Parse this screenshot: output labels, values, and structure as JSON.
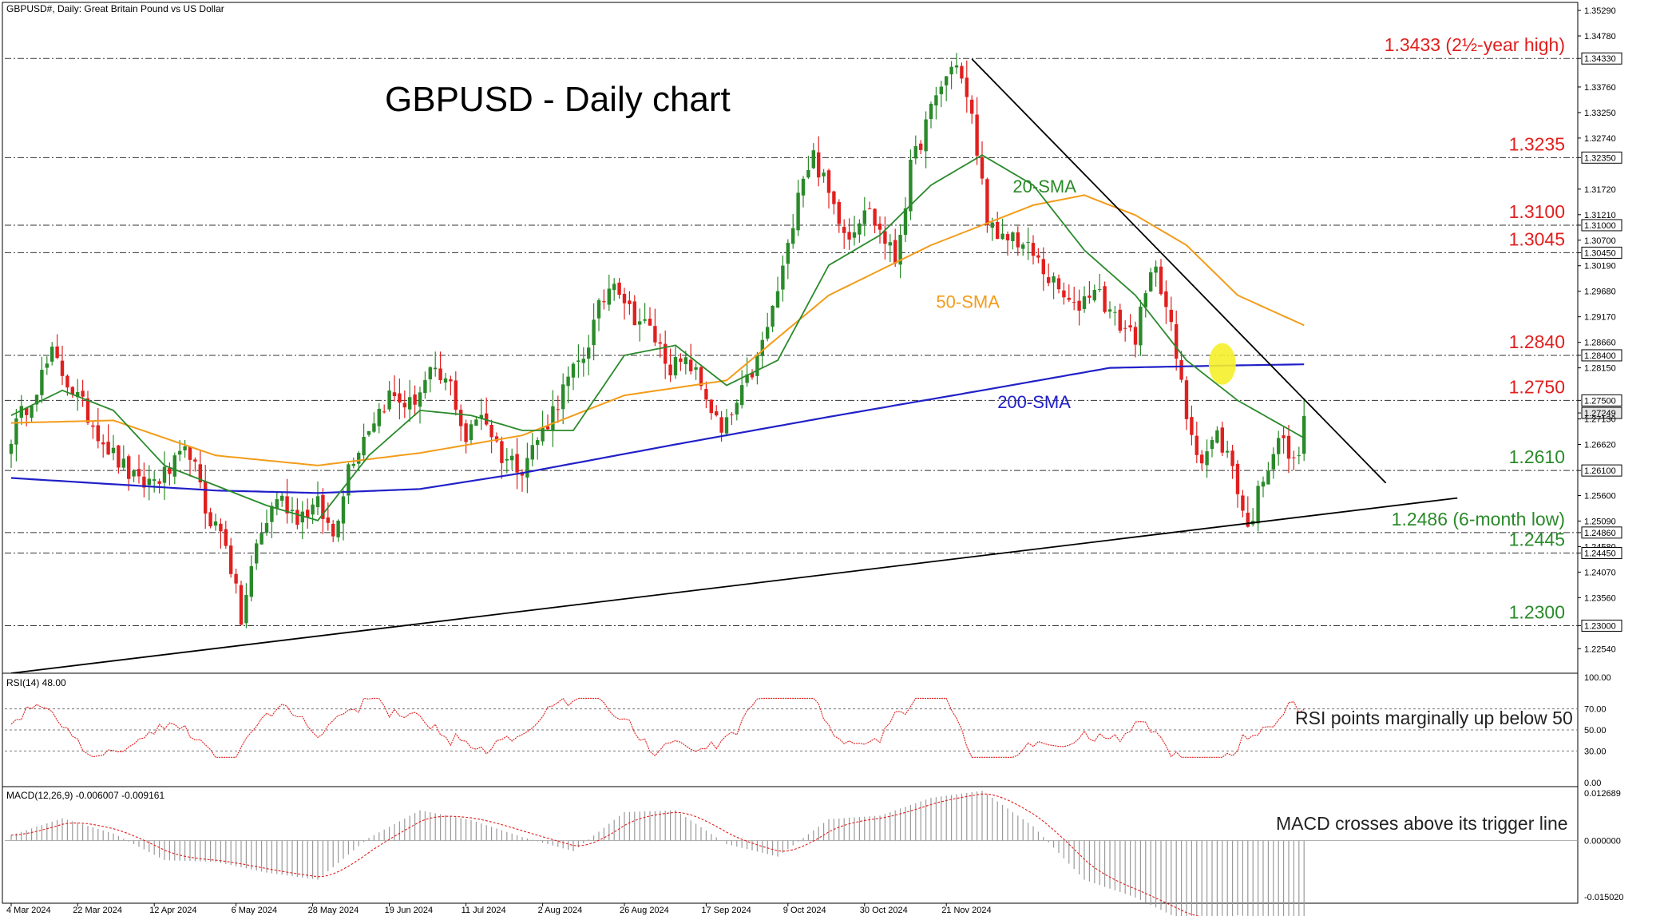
{
  "header": {
    "symbol_info": "GBPUSD#, Daily:  Great Britain Pound vs US Dollar"
  },
  "chart_data": {
    "type": "candlestick",
    "title": "GBPUSD - Daily chart",
    "price_ticks": [
      "1.35290",
      "1.34780",
      "1.34330",
      "1.33760",
      "1.33250",
      "1.32740",
      "1.32350",
      "1.31720",
      "1.31210",
      "1.31000",
      "1.30700",
      "1.30450",
      "1.30190",
      "1.29680",
      "1.29170",
      "1.28660",
      "1.28400",
      "1.28150",
      "1.27500",
      "1.27249",
      "1.27130",
      "1.26620",
      "1.26100",
      "1.25600",
      "1.25090",
      "1.24860",
      "1.24580",
      "1.24450",
      "1.24070",
      "1.23560",
      "1.23000",
      "1.22540"
    ],
    "price_ylim": [
      1.2205,
      1.3545
    ],
    "current_price": 1.27249,
    "level_lines": [
      {
        "value": 1.3433,
        "label": "1.3433 (2½-year high)",
        "box": "1.34330",
        "color": "#e0201f"
      },
      {
        "value": 1.3235,
        "label": "1.3235",
        "box": "1.32350",
        "color": "#e0201f"
      },
      {
        "value": 1.31,
        "label": "1.3100",
        "box": "1.31000",
        "color": "#e0201f"
      },
      {
        "value": 1.3045,
        "label": "1.3045",
        "box": "1.30450",
        "color": "#e0201f"
      },
      {
        "value": 1.284,
        "label": "1.2840",
        "box": "1.28400",
        "color": "#e0201f"
      },
      {
        "value": 1.275,
        "label": "1.2750",
        "box": "1.27500",
        "color": "#e0201f"
      },
      {
        "value": 1.261,
        "label": "1.2610",
        "box": "1.26100",
        "color": "#2a8a2a"
      },
      {
        "value": 1.2486,
        "label": "1.2486 (6-month low)",
        "box": "1.24860",
        "color": "#2a8a2a"
      },
      {
        "value": 1.2445,
        "label": "1.2445",
        "box": "1.24450",
        "color": "#2a8a2a"
      },
      {
        "value": 1.23,
        "label": "1.2300",
        "box": "1.23000",
        "color": "#2a8a2a"
      }
    ],
    "x_labels": [
      "4 Mar 2024",
      "22 Mar 2024",
      "12 Apr 2024",
      "6 May 2024",
      "28 May 2024",
      "19 Jun 2024",
      "11 Jul 2024",
      "2 Aug 2024",
      "26 Aug 2024",
      "17 Sep 2024",
      "9 Oct 2024",
      "30 Oct 2024",
      "21 Nov 2024"
    ],
    "anchors": [
      [
        0,
        1.268
      ],
      [
        8,
        1.284
      ],
      [
        15,
        1.272
      ],
      [
        20,
        1.264
      ],
      [
        25,
        1.258
      ],
      [
        30,
        1.26
      ],
      [
        35,
        1.265
      ],
      [
        38,
        1.253
      ],
      [
        42,
        1.247
      ],
      [
        45,
        1.231
      ],
      [
        48,
        1.246
      ],
      [
        52,
        1.256
      ],
      [
        56,
        1.252
      ],
      [
        60,
        1.254
      ],
      [
        63,
        1.248
      ],
      [
        66,
        1.262
      ],
      [
        70,
        1.27
      ],
      [
        74,
        1.276
      ],
      [
        78,
        1.274
      ],
      [
        82,
        1.28
      ],
      [
        86,
        1.278
      ],
      [
        89,
        1.267
      ],
      [
        92,
        1.273
      ],
      [
        96,
        1.264
      ],
      [
        100,
        1.262
      ],
      [
        104,
        1.269
      ],
      [
        108,
        1.277
      ],
      [
        112,
        1.284
      ],
      [
        115,
        1.293
      ],
      [
        118,
        1.3
      ],
      [
        121,
        1.293
      ],
      [
        125,
        1.289
      ],
      [
        129,
        1.282
      ],
      [
        133,
        1.282
      ],
      [
        136,
        1.276
      ],
      [
        139,
        1.268
      ],
      [
        142,
        1.274
      ],
      [
        146,
        1.283
      ],
      [
        149,
        1.293
      ],
      [
        152,
        1.305
      ],
      [
        154,
        1.318
      ],
      [
        157,
        1.324
      ],
      [
        160,
        1.316
      ],
      [
        164,
        1.308
      ],
      [
        167,
        1.314
      ],
      [
        170,
        1.309
      ],
      [
        173,
        1.303
      ],
      [
        176,
        1.321
      ],
      [
        179,
        1.33
      ],
      [
        182,
        1.338
      ],
      [
        185,
        1.343
      ],
      [
        188,
        1.331
      ],
      [
        191,
        1.312
      ],
      [
        193,
        1.306
      ],
      [
        196,
        1.308
      ],
      [
        200,
        1.304
      ],
      [
        204,
        1.298
      ],
      [
        208,
        1.293
      ],
      [
        212,
        1.298
      ],
      [
        216,
        1.291
      ],
      [
        220,
        1.288
      ],
      [
        224,
        1.303
      ],
      [
        227,
        1.289
      ],
      [
        230,
        1.272
      ],
      [
        233,
        1.263
      ],
      [
        236,
        1.268
      ],
      [
        239,
        1.262
      ],
      [
        242,
        1.249
      ],
      [
        245,
        1.26
      ],
      [
        248,
        1.268
      ],
      [
        251,
        1.262
      ],
      [
        253,
        1.27
      ]
    ],
    "sma20_anchors": [
      [
        0,
        1.272
      ],
      [
        10,
        1.277
      ],
      [
        20,
        1.273
      ],
      [
        30,
        1.262
      ],
      [
        40,
        1.258
      ],
      [
        50,
        1.254
      ],
      [
        60,
        1.251
      ],
      [
        70,
        1.264
      ],
      [
        80,
        1.273
      ],
      [
        90,
        1.272
      ],
      [
        100,
        1.269
      ],
      [
        110,
        1.269
      ],
      [
        120,
        1.284
      ],
      [
        130,
        1.286
      ],
      [
        140,
        1.278
      ],
      [
        150,
        1.283
      ],
      [
        160,
        1.302
      ],
      [
        170,
        1.308
      ],
      [
        180,
        1.318
      ],
      [
        190,
        1.324
      ],
      [
        200,
        1.318
      ],
      [
        210,
        1.305
      ],
      [
        220,
        1.296
      ],
      [
        230,
        1.283
      ],
      [
        240,
        1.275
      ],
      [
        253,
        1.2675
      ]
    ],
    "sma50_anchors": [
      [
        0,
        1.2705
      ],
      [
        20,
        1.271
      ],
      [
        40,
        1.264
      ],
      [
        60,
        1.262
      ],
      [
        80,
        1.2645
      ],
      [
        100,
        1.268
      ],
      [
        120,
        1.276
      ],
      [
        140,
        1.279
      ],
      [
        160,
        1.296
      ],
      [
        180,
        1.306
      ],
      [
        200,
        1.314
      ],
      [
        210,
        1.316
      ],
      [
        220,
        1.312
      ],
      [
        230,
        1.306
      ],
      [
        240,
        1.296
      ],
      [
        253,
        1.29
      ]
    ],
    "sma200_anchors": [
      [
        0,
        1.2595
      ],
      [
        40,
        1.257
      ],
      [
        60,
        1.2565
      ],
      [
        80,
        1.2573
      ],
      [
        100,
        1.2605
      ],
      [
        130,
        1.2662
      ],
      [
        160,
        1.2717
      ],
      [
        190,
        1.277
      ],
      [
        215,
        1.2815
      ],
      [
        240,
        1.282
      ],
      [
        253,
        1.2822
      ]
    ],
    "trendlines": [
      {
        "from": [
          188,
          1.3432
        ],
        "to": [
          269,
          1.2585
        ]
      },
      {
        "from": [
          0,
          1.2205
        ],
        "to": [
          283,
          1.2555
        ]
      }
    ],
    "annotations": [
      {
        "text": "20-SMA",
        "color": "#2a8a2a"
      },
      {
        "text": "50-SMA",
        "color": "#f39c1a"
      },
      {
        "text": "200-SMA",
        "color": "#2020c8"
      }
    ],
    "bull_color": "#2a8a2a",
    "bear_color": "#e0201f",
    "rsi": {
      "label": "RSI(14) 48.00",
      "levels": [
        70,
        50,
        30
      ],
      "ticks": [
        "100.00",
        "70.00",
        "50.00",
        "30.00",
        "0.00"
      ],
      "note": "RSI points marginally up below 50"
    },
    "macd": {
      "label": "MACD(12,26,9) -0.006007 -0.009161",
      "ticks": [
        "0.012689",
        "0.000000",
        "-0.015020"
      ],
      "note": "MACD crosses above its trigger line"
    }
  }
}
